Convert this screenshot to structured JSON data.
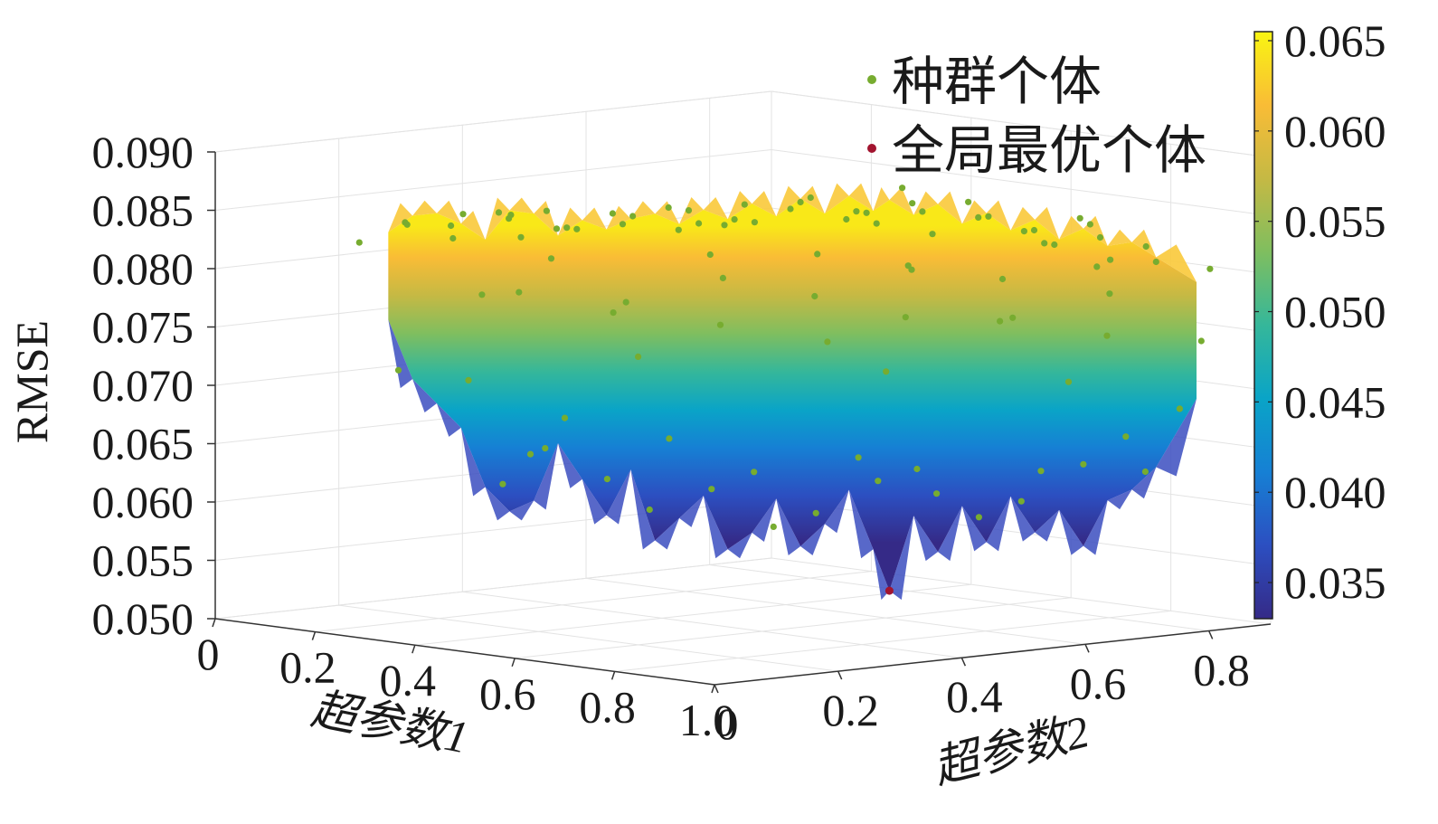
{
  "chart_data": {
    "type": "surface",
    "z_label": "RMSE",
    "x_label": "超参数1",
    "y_label": "超参数2",
    "x_ticks": [
      "0",
      "0.2",
      "0.4",
      "0.6",
      "0.8",
      "1.0"
    ],
    "y_ticks": [
      "0",
      "0.2",
      "0.4",
      "0.6",
      "0.8"
    ],
    "z_ticks": [
      "0.050",
      "0.055",
      "0.060",
      "0.065",
      "0.070",
      "0.075",
      "0.080",
      "0.085",
      "0.090"
    ],
    "x_range": [
      0,
      1.0
    ],
    "y_range": [
      0,
      0.9
    ],
    "z_range": [
      0.05,
      0.09
    ],
    "colorbar": {
      "ticks": [
        "0.035",
        "0.040",
        "0.045",
        "0.050",
        "0.055",
        "0.060",
        "0.065"
      ],
      "range": [
        0.033,
        0.0655
      ],
      "colormap": "parula"
    },
    "legend": {
      "placement": "top-right",
      "entries": [
        {
          "label": "种群个体",
          "color": "#77AC30"
        },
        {
          "label": "全局最优个体",
          "color": "#A2142F"
        }
      ]
    },
    "best_individual": {
      "x": 0.62,
      "y": 0.0,
      "z": 0.0525
    },
    "surface_profile": {
      "x": [
        0.0,
        0.03,
        0.06,
        0.09,
        0.12,
        0.15,
        0.18,
        0.21,
        0.24,
        0.27,
        0.3,
        0.33,
        0.36,
        0.39,
        0.42,
        0.45,
        0.48,
        0.51,
        0.54,
        0.57,
        0.6,
        0.62,
        0.65,
        0.68,
        0.71,
        0.74,
        0.77,
        0.8,
        0.83,
        0.86,
        0.89,
        0.92,
        0.95,
        1.0
      ],
      "upper_rmse": [
        0.0815,
        0.083,
        0.0833,
        0.0825,
        0.0812,
        0.0838,
        0.0836,
        0.0818,
        0.0832,
        0.0825,
        0.0835,
        0.084,
        0.0832,
        0.0845,
        0.0838,
        0.0852,
        0.0842,
        0.0858,
        0.0846,
        0.0862,
        0.085,
        0.086,
        0.0848,
        0.0858,
        0.0842,
        0.0852,
        0.0838,
        0.0848,
        0.0832,
        0.0842,
        0.0828,
        0.0832,
        0.082,
        0.08
      ],
      "lower_rmse": [
        0.074,
        0.069,
        0.067,
        0.065,
        0.06,
        0.058,
        0.059,
        0.064,
        0.061,
        0.058,
        0.062,
        0.056,
        0.058,
        0.06,
        0.0555,
        0.057,
        0.06,
        0.056,
        0.058,
        0.061,
        0.056,
        0.0525,
        0.059,
        0.056,
        0.06,
        0.057,
        0.061,
        0.058,
        0.06,
        0.057,
        0.061,
        0.062,
        0.064,
        0.07
      ]
    },
    "population": [
      {
        "x": 0.01,
        "z": 0.081
      },
      {
        "x": 0.03,
        "z": 0.0825
      },
      {
        "x": 0.05,
        "z": 0.082
      },
      {
        "x": 0.06,
        "z": 0.0826
      },
      {
        "x": 0.08,
        "z": 0.0812
      },
      {
        "x": 0.1,
        "z": 0.0832
      },
      {
        "x": 0.12,
        "z": 0.0836
      },
      {
        "x": 0.14,
        "z": 0.083
      },
      {
        "x": 0.15,
        "z": 0.0834
      },
      {
        "x": 0.17,
        "z": 0.0836
      },
      {
        "x": 0.19,
        "z": 0.0822
      },
      {
        "x": 0.21,
        "z": 0.082
      },
      {
        "x": 0.23,
        "z": 0.0826
      },
      {
        "x": 0.25,
        "z": 0.0836
      },
      {
        "x": 0.27,
        "z": 0.0828
      },
      {
        "x": 0.29,
        "z": 0.083
      },
      {
        "x": 0.31,
        "z": 0.0842
      },
      {
        "x": 0.33,
        "z": 0.084
      },
      {
        "x": 0.35,
        "z": 0.0826
      },
      {
        "x": 0.37,
        "z": 0.0828
      },
      {
        "x": 0.39,
        "z": 0.0846
      },
      {
        "x": 0.41,
        "z": 0.0836
      },
      {
        "x": 0.43,
        "z": 0.0838
      },
      {
        "x": 0.45,
        "z": 0.0852
      },
      {
        "x": 0.47,
        "z": 0.0846
      },
      {
        "x": 0.49,
        "z": 0.084
      },
      {
        "x": 0.51,
        "z": 0.0855
      },
      {
        "x": 0.53,
        "z": 0.0838
      },
      {
        "x": 0.55,
        "z": 0.0862
      },
      {
        "x": 0.57,
        "z": 0.0848
      },
      {
        "x": 0.59,
        "z": 0.0866
      },
      {
        "x": 0.61,
        "z": 0.085
      },
      {
        "x": 0.63,
        "z": 0.0856
      },
      {
        "x": 0.65,
        "z": 0.0844
      },
      {
        "x": 0.67,
        "z": 0.0852
      },
      {
        "x": 0.69,
        "z": 0.0858
      },
      {
        "x": 0.71,
        "z": 0.0836
      },
      {
        "x": 0.73,
        "z": 0.0848
      },
      {
        "x": 0.75,
        "z": 0.0834
      },
      {
        "x": 0.77,
        "z": 0.0852
      },
      {
        "x": 0.79,
        "z": 0.0838
      },
      {
        "x": 0.81,
        "z": 0.0846
      },
      {
        "x": 0.83,
        "z": 0.083
      },
      {
        "x": 0.85,
        "z": 0.0844
      },
      {
        "x": 0.87,
        "z": 0.0832
      },
      {
        "x": 0.89,
        "z": 0.0836
      },
      {
        "x": 0.91,
        "z": 0.0826
      },
      {
        "x": 0.93,
        "z": 0.082
      },
      {
        "x": 0.95,
        "z": 0.0816
      },
      {
        "x": 0.98,
        "z": 0.0808
      },
      {
        "x": 0.04,
        "z": 0.07
      },
      {
        "x": 0.09,
        "z": 0.069
      },
      {
        "x": 0.13,
        "z": 0.0625
      },
      {
        "x": 0.16,
        "z": 0.0605
      },
      {
        "x": 0.2,
        "z": 0.066
      },
      {
        "x": 0.24,
        "z": 0.064
      },
      {
        "x": 0.28,
        "z": 0.0612
      },
      {
        "x": 0.32,
        "z": 0.0645
      },
      {
        "x": 0.36,
        "z": 0.059
      },
      {
        "x": 0.4,
        "z": 0.0606
      },
      {
        "x": 0.44,
        "z": 0.0572
      },
      {
        "x": 0.48,
        "z": 0.0625
      },
      {
        "x": 0.52,
        "z": 0.0588
      },
      {
        "x": 0.56,
        "z": 0.0614
      },
      {
        "x": 0.6,
        "z": 0.064
      },
      {
        "x": 0.66,
        "z": 0.0608
      },
      {
        "x": 0.7,
        "z": 0.0635
      },
      {
        "x": 0.74,
        "z": 0.0592
      },
      {
        "x": 0.78,
        "z": 0.063
      },
      {
        "x": 0.82,
        "z": 0.061
      },
      {
        "x": 0.86,
        "z": 0.064
      },
      {
        "x": 0.9,
        "z": 0.0632
      },
      {
        "x": 0.94,
        "z": 0.0668
      },
      {
        "x": 0.97,
        "z": 0.069
      },
      {
        "x": 0.07,
        "z": 0.076
      },
      {
        "x": 0.18,
        "z": 0.077
      },
      {
        "x": 0.26,
        "z": 0.0752
      },
      {
        "x": 0.34,
        "z": 0.0768
      },
      {
        "x": 0.42,
        "z": 0.0748
      },
      {
        "x": 0.5,
        "z": 0.0772
      },
      {
        "x": 0.58,
        "z": 0.074
      },
      {
        "x": 0.64,
        "z": 0.076
      },
      {
        "x": 0.72,
        "z": 0.0756
      },
      {
        "x": 0.8,
        "z": 0.0766
      },
      {
        "x": 0.88,
        "z": 0.075
      },
      {
        "x": 0.96,
        "z": 0.0745
      },
      {
        "x": 0.22,
        "z": 0.08
      },
      {
        "x": 0.38,
        "z": 0.0805
      },
      {
        "x": 0.46,
        "z": 0.0792
      },
      {
        "x": 0.54,
        "z": 0.0812
      },
      {
        "x": 0.62,
        "z": 0.0798
      },
      {
        "x": 0.68,
        "z": 0.0808
      },
      {
        "x": 0.76,
        "z": 0.0796
      },
      {
        "x": 0.84,
        "z": 0.0806
      },
      {
        "x": 0.92,
        "z": 0.079
      },
      {
        "x": 0.3,
        "z": 0.0716
      },
      {
        "x": 0.57,
        "z": 0.0708
      },
      {
        "x": 0.86,
        "z": 0.0712
      }
    ]
  }
}
